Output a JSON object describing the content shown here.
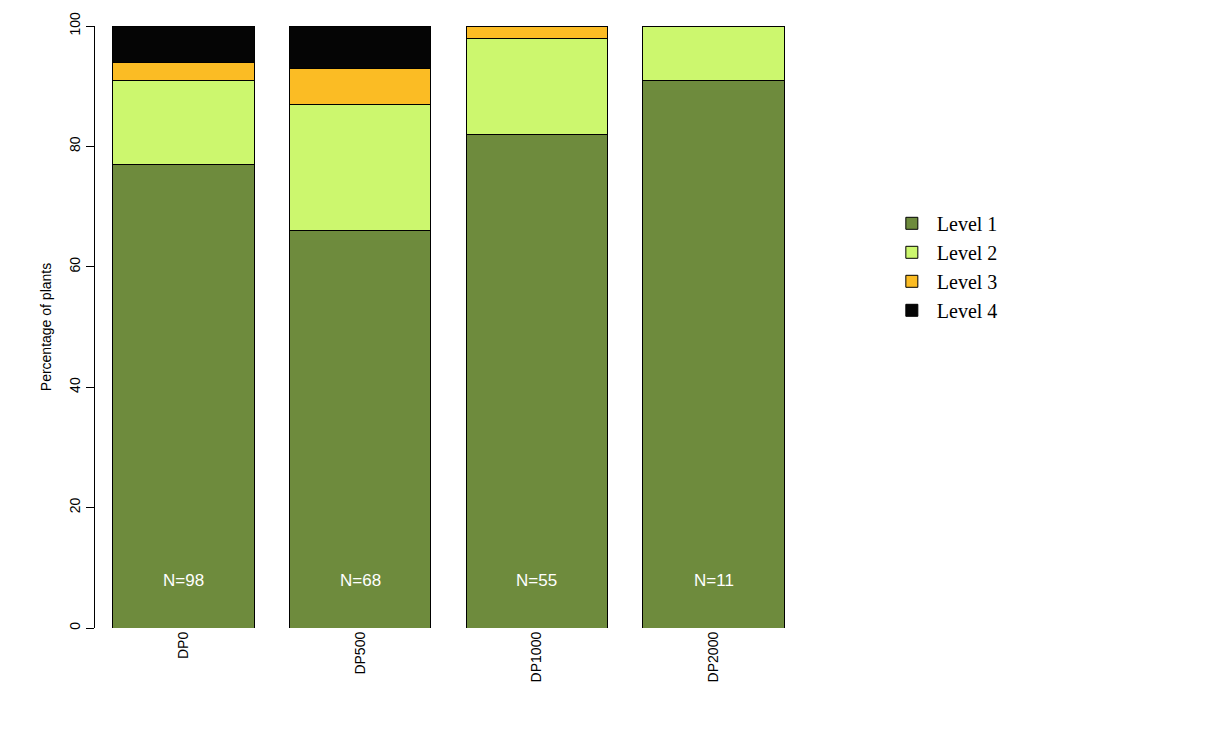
{
  "chart_data": {
    "type": "bar",
    "stacked": true,
    "categories": [
      "DP0",
      "DP500",
      "DP1000",
      "DP2000"
    ],
    "series": [
      {
        "name": "Level 1",
        "color": "#6e8b3d",
        "values": [
          77,
          66,
          82,
          91
        ]
      },
      {
        "name": "Level 2",
        "color": "#ccf76e",
        "values": [
          14,
          21,
          16,
          9
        ]
      },
      {
        "name": "Level 3",
        "color": "#fbbc24",
        "values": [
          3,
          6,
          2,
          0
        ]
      },
      {
        "name": "Level 4",
        "color": "#050505",
        "values": [
          6,
          7,
          0,
          0
        ]
      }
    ],
    "annotations": [
      "N=98",
      "N=68",
      "N=55",
      "N=11"
    ],
    "y_label": "Percentage of plants",
    "ylim": [
      0,
      100
    ],
    "yticks": [
      0,
      20,
      40,
      60,
      80,
      100
    ],
    "grid": false,
    "legend": "right"
  }
}
